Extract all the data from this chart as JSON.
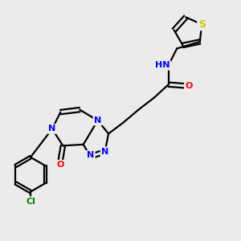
{
  "bg_color": "#ebebeb",
  "bond_color": "#000000",
  "bond_width": 1.6,
  "atom_colors": {
    "N": "#0000ff",
    "O": "#ff0000",
    "S": "#cccc00",
    "Cl": "#008000",
    "H": "#777777",
    "C": "#000000"
  },
  "font_size_atom": 8,
  "fig_size": [
    3.0,
    3.0
  ],
  "dpi": 100
}
